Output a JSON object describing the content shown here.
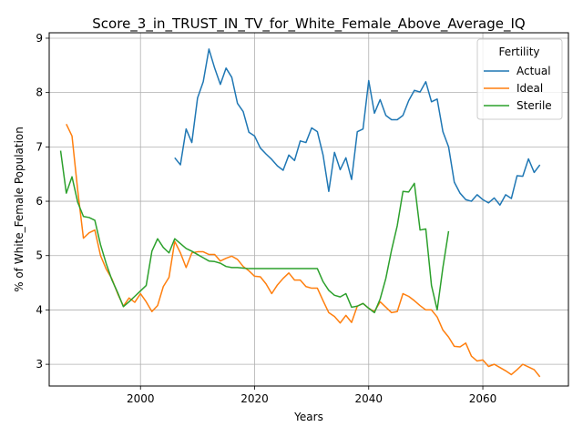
{
  "chart_data": {
    "type": "line",
    "title": "Score_3_in_TRUST_IN_TV_for_White_Female_Above_Average_IQ",
    "xlabel": "Years",
    "ylabel": "% of White_Female Population",
    "xlim": [
      1984,
      2075
    ],
    "ylim": [
      2.6,
      9.1
    ],
    "xticks": [
      2000,
      2020,
      2040,
      2060
    ],
    "yticks": [
      3,
      4,
      5,
      6,
      7,
      8,
      9
    ],
    "grid": true,
    "legend": {
      "title": "Fertility",
      "placement": "top-right"
    },
    "series": [
      {
        "name": "Actual",
        "color": "#1f77b4",
        "x": [
          2006,
          2007,
          2008,
          2009,
          2010,
          2011,
          2012,
          2013,
          2014,
          2015,
          2016,
          2017,
          2018,
          2019,
          2020,
          2021,
          2022,
          2023,
          2024,
          2025,
          2026,
          2027,
          2028,
          2029,
          2030,
          2031,
          2032,
          2033,
          2034,
          2035,
          2036,
          2037,
          2038,
          2039,
          2040,
          2041,
          2042,
          2043,
          2044,
          2045,
          2046,
          2047,
          2048,
          2049,
          2050,
          2051,
          2052,
          2053,
          2054,
          2055,
          2056,
          2057,
          2058,
          2059,
          2060,
          2061,
          2062,
          2063,
          2064,
          2065,
          2066,
          2067,
          2068,
          2069,
          2070
        ],
        "y": [
          6.8,
          6.67,
          7.33,
          7.08,
          7.9,
          8.2,
          8.8,
          8.45,
          8.15,
          8.45,
          8.28,
          7.8,
          7.65,
          7.27,
          7.2,
          6.98,
          6.87,
          6.77,
          6.65,
          6.57,
          6.85,
          6.75,
          7.11,
          7.08,
          7.35,
          7.28,
          6.85,
          6.18,
          6.9,
          6.58,
          6.8,
          6.4,
          7.28,
          7.33,
          8.22,
          7.62,
          7.87,
          7.58,
          7.5,
          7.5,
          7.58,
          7.85,
          8.04,
          8.01,
          8.2,
          7.83,
          7.88,
          7.28,
          7.0,
          6.35,
          6.15,
          6.03,
          6.0,
          6.12,
          6.03,
          5.97,
          6.06,
          5.93,
          6.12,
          6.05,
          6.47,
          6.46,
          6.78,
          6.53,
          6.67
        ]
      },
      {
        "name": "Ideal",
        "color": "#ff7f0e",
        "x": [
          1987,
          1988,
          1989,
          1990,
          1991,
          1992,
          1993,
          1994,
          1995,
          1996,
          1997,
          1998,
          1999,
          2000,
          2001,
          2002,
          2003,
          2004,
          2005,
          2006,
          2007,
          2008,
          2009,
          2010,
          2011,
          2012,
          2013,
          2014,
          2015,
          2016,
          2017,
          2018,
          2019,
          2020,
          2021,
          2022,
          2023,
          2024,
          2025,
          2026,
          2027,
          2028,
          2029,
          2030,
          2031,
          2032,
          2033,
          2034,
          2035,
          2036,
          2037,
          2038,
          2039,
          2040,
          2041,
          2042,
          2043,
          2044,
          2045,
          2046,
          2047,
          2048,
          2049,
          2050,
          2051,
          2052,
          2053,
          2054,
          2055,
          2056,
          2057,
          2058,
          2059,
          2060,
          2061,
          2062,
          2063,
          2064,
          2065,
          2066,
          2067,
          2068,
          2069,
          2070
        ],
        "y": [
          7.42,
          7.2,
          6.2,
          5.32,
          5.42,
          5.47,
          5.0,
          4.75,
          4.57,
          4.3,
          4.07,
          4.22,
          4.14,
          4.3,
          4.15,
          3.97,
          4.08,
          4.43,
          4.6,
          5.26,
          5.05,
          4.78,
          5.05,
          5.07,
          5.07,
          5.02,
          5.02,
          4.9,
          4.95,
          4.99,
          4.93,
          4.8,
          4.72,
          4.62,
          4.61,
          4.48,
          4.3,
          4.46,
          4.58,
          4.68,
          4.55,
          4.55,
          4.43,
          4.4,
          4.4,
          4.17,
          3.95,
          3.88,
          3.76,
          3.9,
          3.77,
          4.07,
          4.12,
          4.03,
          3.97,
          4.15,
          4.05,
          3.95,
          3.97,
          4.3,
          4.25,
          4.17,
          4.08,
          4.0,
          4.0,
          3.87,
          3.63,
          3.5,
          3.33,
          3.32,
          3.39,
          3.15,
          3.06,
          3.08,
          2.96,
          3.0,
          2.94,
          2.88,
          2.81,
          2.9,
          3.0,
          2.95,
          2.9,
          2.77
        ]
      },
      {
        "name": "Sterile",
        "color": "#2ca02c",
        "x": [
          1986,
          1987,
          1988,
          1989,
          1990,
          1991,
          1992,
          1993,
          1994,
          1995,
          1996,
          1997,
          1998,
          1999,
          2000,
          2001,
          2002,
          2003,
          2004,
          2005,
          2006,
          2007,
          2008,
          2009,
          2010,
          2011,
          2012,
          2013,
          2014,
          2015,
          2016,
          2017,
          2018,
          2019,
          2020,
          2021,
          2022,
          2023,
          2024,
          2025,
          2026,
          2027,
          2028,
          2029,
          2030,
          2031,
          2032,
          2033,
          2034,
          2035,
          2036,
          2037,
          2038,
          2039,
          2040,
          2041,
          2042,
          2043,
          2044,
          2045,
          2046,
          2047,
          2048,
          2049,
          2050,
          2051,
          2052,
          2053,
          2054
        ],
        "y": [
          6.93,
          6.15,
          6.45,
          5.98,
          5.72,
          5.7,
          5.65,
          5.2,
          4.85,
          4.55,
          4.32,
          4.06,
          4.15,
          4.25,
          4.35,
          4.45,
          5.08,
          5.31,
          5.15,
          5.05,
          5.31,
          5.22,
          5.13,
          5.08,
          5.02,
          4.96,
          4.9,
          4.89,
          4.86,
          4.8,
          4.78,
          4.78,
          4.77,
          4.76,
          4.76,
          4.76,
          4.76,
          4.76,
          4.76,
          4.76,
          4.76,
          4.76,
          4.76,
          4.76,
          4.76,
          4.76,
          4.52,
          4.36,
          4.27,
          4.24,
          4.3,
          4.05,
          4.07,
          4.12,
          4.03,
          3.95,
          4.2,
          4.58,
          5.1,
          5.55,
          6.18,
          6.17,
          6.33,
          5.47,
          5.49,
          4.45,
          4.0,
          4.78,
          5.45
        ]
      }
    ]
  }
}
